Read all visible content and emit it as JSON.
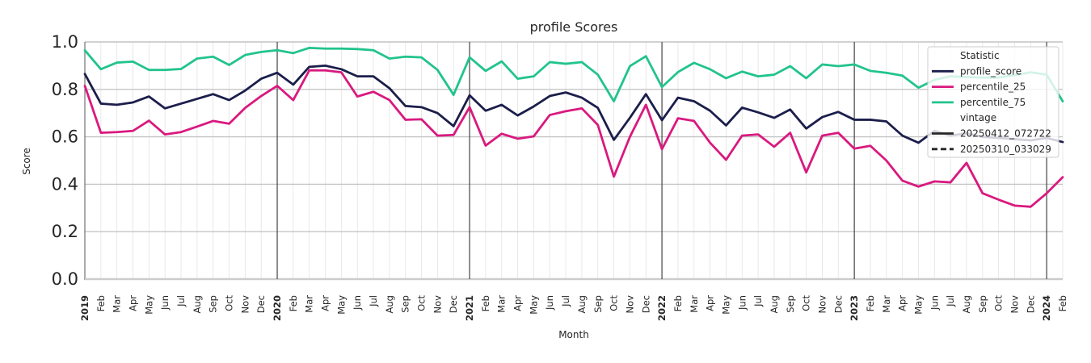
{
  "chart_data": {
    "type": "line",
    "title": "profile Scores",
    "xlabel": "Month",
    "ylabel": "Score",
    "ylim": [
      0.0,
      1.0
    ],
    "yticks": [
      "0.0",
      "0.2",
      "0.4",
      "0.6",
      "0.8",
      "1.0"
    ],
    "x_start": "2019-01",
    "x_end": "2024-02",
    "x": [
      "2019-01",
      "2019-02",
      "2019-03",
      "2019-04",
      "2019-05",
      "2019-06",
      "2019-07",
      "2019-08",
      "2019-09",
      "2019-10",
      "2019-11",
      "2019-12",
      "2020-01",
      "2020-02",
      "2020-03",
      "2020-04",
      "2020-05",
      "2020-06",
      "2020-07",
      "2020-08",
      "2020-09",
      "2020-10",
      "2020-11",
      "2020-12",
      "2021-01",
      "2021-02",
      "2021-03",
      "2021-04",
      "2021-05",
      "2021-06",
      "2021-07",
      "2021-08",
      "2021-09",
      "2021-10",
      "2021-11",
      "2021-12",
      "2022-01",
      "2022-02",
      "2022-03",
      "2022-04",
      "2022-05",
      "2022-06",
      "2022-07",
      "2022-08",
      "2022-09",
      "2022-10",
      "2022-11",
      "2022-12",
      "2023-01",
      "2023-02",
      "2023-03",
      "2023-04",
      "2023-05",
      "2023-06",
      "2023-07",
      "2023-08",
      "2023-09",
      "2023-10",
      "2023-11",
      "2023-12",
      "2024-01",
      "2024-02"
    ],
    "xtick_labels": [
      "2019",
      "Feb",
      "Mar",
      "Apr",
      "May",
      "Jun",
      "Jul",
      "Aug",
      "Sep",
      "Oct",
      "Nov",
      "Dec",
      "2020",
      "Feb",
      "Mar",
      "Apr",
      "May",
      "Jun",
      "Jul",
      "Aug",
      "Sep",
      "Oct",
      "Nov",
      "Dec",
      "2021",
      "Feb",
      "Mar",
      "Apr",
      "May",
      "Jun",
      "Jul",
      "Aug",
      "Sep",
      "Oct",
      "Nov",
      "Dec",
      "2022",
      "Feb",
      "Mar",
      "Apr",
      "May",
      "Jun",
      "Jul",
      "Aug",
      "Sep",
      "Oct",
      "Nov",
      "Dec",
      "2023",
      "Feb",
      "Mar",
      "Apr",
      "May",
      "Jun",
      "Jul",
      "Aug",
      "Sep",
      "Oct",
      "Nov",
      "Dec",
      "2024",
      "Feb"
    ],
    "year_labels": [
      "2019",
      "2020",
      "2021",
      "2022",
      "2023",
      "2024"
    ],
    "series": [
      {
        "name": "profile_score",
        "color": "#1b1e4b",
        "vintage": "20250412_072722",
        "values": [
          0.865,
          0.74,
          0.735,
          0.745,
          0.77,
          0.72,
          0.74,
          0.76,
          0.78,
          0.755,
          0.795,
          0.845,
          0.87,
          0.82,
          0.895,
          0.9,
          0.885,
          0.855,
          0.855,
          0.805,
          0.73,
          0.725,
          0.7,
          0.645,
          0.775,
          0.71,
          0.735,
          0.69,
          0.728,
          0.772,
          0.787,
          0.765,
          0.722,
          0.587,
          0.68,
          0.78,
          0.67,
          0.765,
          0.75,
          0.71,
          0.648,
          0.723,
          0.703,
          0.68,
          0.715,
          0.635,
          0.683,
          0.705,
          0.672,
          0.672,
          0.665,
          0.605,
          0.575,
          0.625,
          0.605,
          0.615,
          0.6,
          0.595,
          0.59,
          0.585,
          0.595,
          0.578
        ]
      },
      {
        "name": "percentile_25",
        "color": "#d9197f",
        "vintage": "20250412_072722",
        "values": [
          0.815,
          0.617,
          0.62,
          0.625,
          0.668,
          0.61,
          0.62,
          0.643,
          0.667,
          0.655,
          0.722,
          0.772,
          0.815,
          0.755,
          0.88,
          0.88,
          0.872,
          0.77,
          0.79,
          0.755,
          0.672,
          0.674,
          0.605,
          0.608,
          0.725,
          0.563,
          0.613,
          0.592,
          0.602,
          0.692,
          0.708,
          0.72,
          0.65,
          0.432,
          0.6,
          0.735,
          0.548,
          0.678,
          0.667,
          0.575,
          0.503,
          0.605,
          0.61,
          0.558,
          0.617,
          0.45,
          0.605,
          0.617,
          0.55,
          0.562,
          0.5,
          0.415,
          0.39,
          0.412,
          0.408,
          0.49,
          0.362,
          0.335,
          0.31,
          0.305,
          0.362,
          0.43
        ]
      },
      {
        "name": "percentile_75",
        "color": "#22c38e",
        "vintage": "20250412_072722",
        "values": [
          0.965,
          0.885,
          0.913,
          0.917,
          0.882,
          0.882,
          0.886,
          0.93,
          0.938,
          0.903,
          0.945,
          0.958,
          0.965,
          0.953,
          0.975,
          0.972,
          0.972,
          0.97,
          0.965,
          0.93,
          0.938,
          0.935,
          0.882,
          0.777,
          0.935,
          0.878,
          0.918,
          0.845,
          0.855,
          0.915,
          0.908,
          0.915,
          0.862,
          0.75,
          0.898,
          0.94,
          0.81,
          0.873,
          0.912,
          0.885,
          0.847,
          0.875,
          0.855,
          0.862,
          0.898,
          0.847,
          0.905,
          0.898,
          0.905,
          0.878,
          0.87,
          0.858,
          0.807,
          0.84,
          0.855,
          0.852,
          0.85,
          0.85,
          0.86,
          0.872,
          0.862,
          0.75
        ]
      }
    ],
    "legend": {
      "placement": "top-right",
      "statistic_title": "Statistic",
      "vintage_title": "vintage",
      "vintages": [
        {
          "name": "20250412_072722",
          "style": "solid"
        },
        {
          "name": "20250310_033029",
          "style": "dashed"
        }
      ]
    },
    "grid": true
  }
}
